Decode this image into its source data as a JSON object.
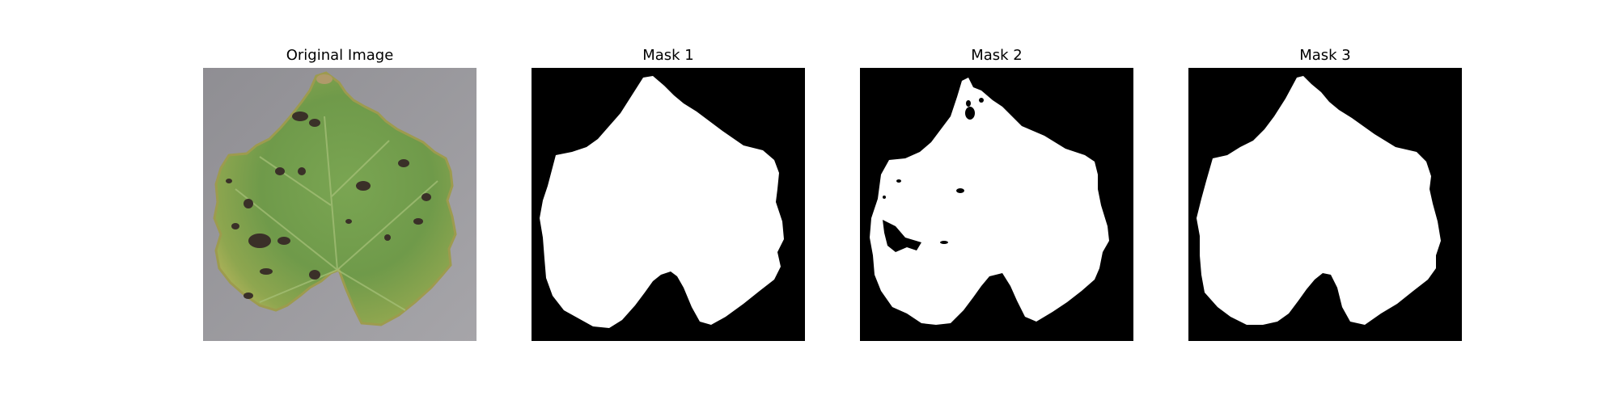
{
  "panels": [
    {
      "title": "Original Image",
      "kind": "photo",
      "content": "green-leaf-with-dark-spots-on-gray-background"
    },
    {
      "title": "Mask 1",
      "kind": "mask"
    },
    {
      "title": "Mask 2",
      "kind": "mask"
    },
    {
      "title": "Mask 3",
      "kind": "mask"
    }
  ],
  "colors": {
    "background": "#ffffff",
    "mask_foreground": "#ffffff",
    "mask_background": "#000000",
    "photo_background": "#9b9a9e",
    "leaf_green": "#6f9a4a",
    "leaf_yellow": "#b3b45a",
    "leaf_spot": "#3a3028"
  }
}
